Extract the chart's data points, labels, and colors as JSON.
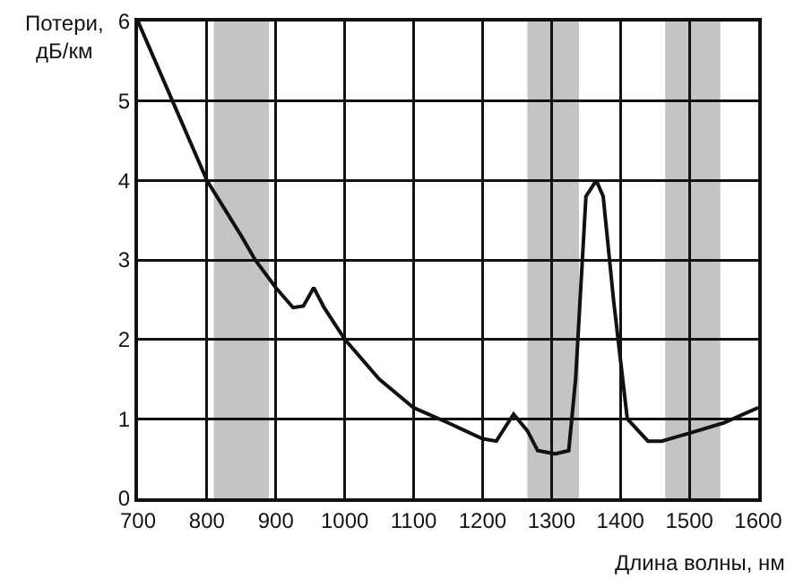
{
  "chart_data": {
    "type": "line",
    "xlabel": "Длина волны, нм",
    "ylabel": "Потери,\nдБ/км",
    "x": [
      700,
      750,
      800,
      850,
      870,
      900,
      925,
      940,
      955,
      970,
      1000,
      1050,
      1100,
      1150,
      1200,
      1220,
      1245,
      1265,
      1280,
      1305,
      1325,
      1335,
      1350,
      1365,
      1375,
      1390,
      1410,
      1440,
      1460,
      1500,
      1550,
      1600
    ],
    "series": [
      {
        "color": "#111111",
        "values": [
          6,
          5,
          4,
          3.3,
          3,
          2.65,
          2.4,
          2.42,
          2.65,
          2.4,
          2.0,
          1.5,
          1.14,
          0.95,
          0.75,
          0.72,
          1.06,
          0.85,
          0.6,
          0.56,
          0.6,
          1.5,
          3.8,
          4.0,
          3.8,
          2.5,
          1.0,
          0.72,
          0.72,
          0.82,
          0.95,
          1.14
        ]
      }
    ],
    "xlim": [
      700,
      1600
    ],
    "xticks": [
      700,
      800,
      900,
      1000,
      1100,
      1200,
      1300,
      1400,
      1500,
      1600
    ],
    "ylim": [
      0,
      6
    ],
    "yticks": [
      0,
      1,
      2,
      3,
      4,
      5,
      6
    ],
    "bands": [
      {
        "axis": "x",
        "from": 810,
        "to": 890,
        "color": "#c4c4c4"
      },
      {
        "axis": "x",
        "from": 1265,
        "to": 1340,
        "color": "#c4c4c4"
      },
      {
        "axis": "x",
        "from": 1465,
        "to": 1545,
        "color": "#c4c4c4"
      }
    ],
    "grid": true,
    "line_style": "solid",
    "marker": "none"
  }
}
